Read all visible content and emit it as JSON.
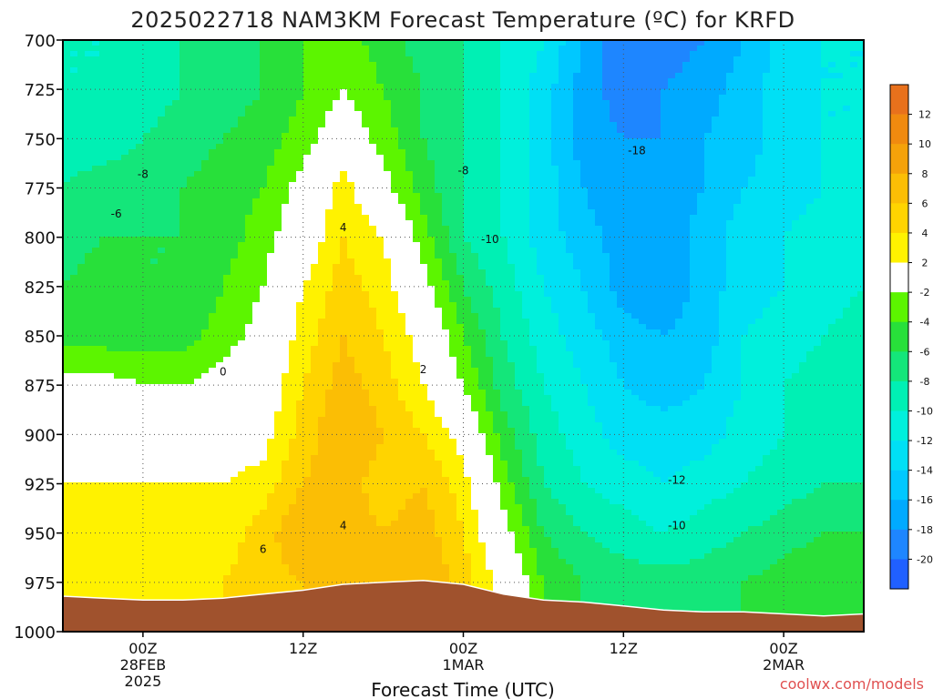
{
  "title": "2025022718 NAM3KM Forecast Temperature (ºC) for KRFD",
  "credit": "coolwx.com/models",
  "colors": {
    "terrain": "#a0522d",
    "freezing_contour": "#b0206a"
  },
  "chart_data": {
    "type": "heatmap",
    "title": "2025022718 NAM3KM Forecast Temperature (ºC) for KRFD",
    "xlabel": "Forecast Time (UTC)",
    "ylabel": "",
    "y_axis": {
      "ticks": [
        700,
        725,
        750,
        775,
        800,
        825,
        850,
        875,
        900,
        925,
        950,
        975,
        1000
      ],
      "ylim": [
        1000,
        700
      ],
      "units": "hPa"
    },
    "x_axis": {
      "ticks": [
        {
          "hour": 6,
          "lines": [
            "00Z",
            "28FEB",
            "2025"
          ]
        },
        {
          "hour": 18,
          "lines": [
            "12Z"
          ]
        },
        {
          "hour": 30,
          "lines": [
            "00Z",
            "1MAR"
          ]
        },
        {
          "hour": 42,
          "lines": [
            "12Z"
          ]
        },
        {
          "hour": 54,
          "lines": [
            "00Z",
            "2MAR"
          ]
        }
      ],
      "xlim": [
        0,
        60
      ]
    },
    "grid": "dotted",
    "colorbar": {
      "labels": [
        "12",
        "10",
        "8",
        "6",
        "4",
        "2",
        "-2",
        "-4",
        "-6",
        "-8",
        "-10",
        "-12",
        "-14",
        "-16",
        "-18",
        "-20"
      ],
      "colors": [
        "#e8711c",
        "#f08a0f",
        "#f5a20a",
        "#fbbe05",
        "#ffd400",
        "#fff200",
        "#ffffff",
        "#5cf500",
        "#28e03a",
        "#14e67a",
        "#00f0b4",
        "#00f0dc",
        "#00e0f5",
        "#00c8ff",
        "#00aaff",
        "#1e86ff",
        "#2060ff"
      ]
    },
    "grid_data": {
      "hours": [
        0,
        3,
        6,
        9,
        12,
        15,
        18,
        21,
        24,
        27,
        30,
        33,
        36,
        39,
        42,
        45,
        48,
        51,
        54,
        57,
        60
      ],
      "levels": [
        700,
        725,
        750,
        775,
        800,
        825,
        850,
        875,
        900,
        925,
        950,
        975,
        1000
      ],
      "temperature_c": [
        [
          -10,
          -10,
          -9,
          -8,
          -7,
          -6,
          -4,
          -3,
          -5,
          -7,
          -8,
          -10,
          -12,
          -16,
          -20,
          -19,
          -18,
          -16,
          -13,
          -12,
          -12
        ],
        [
          -10,
          -10,
          -9,
          -8,
          -7,
          -6,
          -4,
          -2,
          -4,
          -6,
          -8,
          -10,
          -13,
          -17,
          -19,
          -18,
          -17,
          -15,
          -13,
          -12,
          -12
        ],
        [
          -9,
          -9,
          -8,
          -7,
          -6,
          -5,
          -3,
          0,
          -3,
          -6,
          -8,
          -10,
          -13,
          -17,
          -18,
          -18,
          -16,
          -15,
          -13,
          -12,
          -12
        ],
        [
          -8,
          -7,
          -7,
          -6,
          -5,
          -4,
          -1,
          3,
          -1,
          -5,
          -8,
          -10,
          -13,
          -16,
          -18,
          -17,
          -16,
          -14,
          -13,
          -12,
          -11
        ],
        [
          -7,
          -6,
          -6,
          -6,
          -5,
          -3,
          0,
          4,
          2,
          -3,
          -8,
          -10,
          -13,
          -15,
          -17,
          -18,
          -15,
          -13,
          -12,
          -11,
          -10
        ],
        [
          -6,
          -5,
          -6,
          -6,
          -4,
          -2,
          2,
          5,
          3,
          -1,
          -6,
          -9,
          -12,
          -14,
          -17,
          -18,
          -15,
          -13,
          -12,
          -11,
          -10
        ],
        [
          -5,
          -5,
          -5,
          -5,
          -3,
          -1,
          3,
          6,
          4,
          1,
          -4,
          -8,
          -11,
          -13,
          -15,
          -16,
          -15,
          -12,
          -11,
          -10,
          -9
        ],
        [
          -1,
          -1,
          -2,
          -2,
          -1,
          0,
          4,
          7,
          5,
          2,
          -2,
          -7,
          -10,
          -12,
          -14,
          -15,
          -14,
          -12,
          -10,
          -9,
          -9
        ],
        [
          1,
          0,
          0,
          0,
          0,
          1,
          5,
          8,
          6,
          4,
          1,
          -5,
          -9,
          -11,
          -13,
          -13,
          -13,
          -11,
          -10,
          -9,
          -9
        ],
        [
          2,
          2,
          2,
          2,
          2,
          3,
          6,
          7,
          5,
          6,
          3,
          -3,
          -8,
          -10,
          -11,
          -12,
          -11,
          -10,
          -9,
          -8,
          -8
        ],
        [
          3,
          3,
          3,
          3,
          3,
          5,
          8,
          7,
          6,
          7,
          4,
          -1,
          -6,
          -8,
          -9,
          -10,
          -9,
          -8,
          -7,
          -6,
          -6
        ],
        [
          4,
          3,
          3,
          3,
          4,
          5,
          6,
          6,
          7,
          8,
          5,
          1,
          -4,
          -6,
          -7,
          -7,
          -7,
          -6,
          -5,
          -4,
          -5
        ],
        [
          4,
          3,
          3,
          3,
          4,
          5,
          6,
          6,
          7,
          8,
          5,
          1,
          -4,
          -6,
          -7,
          -7,
          -7,
          -6,
          -5,
          -4,
          -5
        ]
      ],
      "surface_pressure": [
        982,
        983,
        984,
        984,
        983,
        981,
        979,
        976,
        975,
        974,
        976,
        981,
        984,
        985,
        987,
        989,
        990,
        990,
        991,
        992,
        991
      ]
    },
    "contour_labels": [
      {
        "text": "-8",
        "hour": 6,
        "level": 770
      },
      {
        "text": "-6",
        "hour": 4,
        "level": 790
      },
      {
        "text": "0",
        "hour": 12,
        "level": 870
      },
      {
        "text": "4",
        "hour": 21,
        "level": 797
      },
      {
        "text": "2",
        "hour": 27,
        "level": 869
      },
      {
        "text": "4",
        "hour": 21,
        "level": 948
      },
      {
        "text": "6",
        "hour": 15,
        "level": 960
      },
      {
        "text": "-8",
        "hour": 30,
        "level": 768
      },
      {
        "text": "-10",
        "hour": 32,
        "level": 803
      },
      {
        "text": "-18",
        "hour": 43,
        "level": 758
      },
      {
        "text": "-12",
        "hour": 46,
        "level": 925
      },
      {
        "text": "-10",
        "hour": 46,
        "level": 948
      }
    ]
  }
}
